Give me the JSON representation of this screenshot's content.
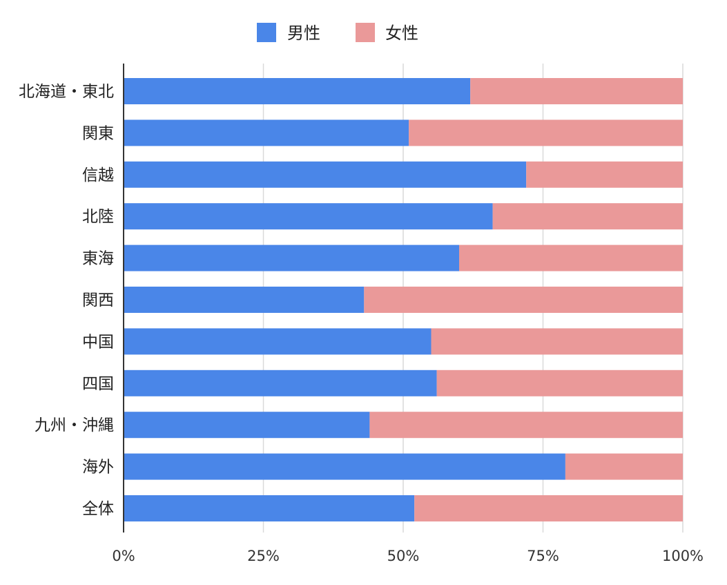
{
  "chart_data": {
    "type": "bar",
    "orientation": "horizontal",
    "stacked": "percent",
    "categories": [
      "北海道・東北",
      "関東",
      "信越",
      "北陸",
      "東海",
      "関西",
      "中国",
      "四国",
      "九州・沖縄",
      "海外",
      "全体"
    ],
    "series": [
      {
        "name": "男性",
        "color": "#4a86e8",
        "values": [
          62,
          51,
          72,
          66,
          60,
          43,
          55,
          56,
          44,
          79,
          52
        ]
      },
      {
        "name": "女性",
        "color": "#ea9999",
        "values": [
          38,
          49,
          28,
          34,
          40,
          57,
          45,
          44,
          56,
          21,
          48
        ]
      }
    ],
    "xlim": [
      0,
      100
    ],
    "x_ticks": [
      "0%",
      "25%",
      "50%",
      "75%",
      "100%"
    ],
    "grid": true,
    "legend_position": "top"
  }
}
